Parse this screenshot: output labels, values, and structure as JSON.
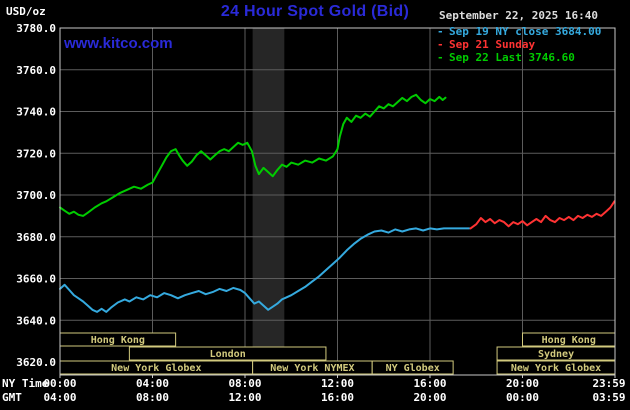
{
  "header": {
    "unit": "USD/oz",
    "title": "24 Hour Spot Gold (Bid)",
    "timestamp": "September 22, 2025 16:40"
  },
  "watermark": "www.kitco.com",
  "footer": {
    "ny_label": "NY Time",
    "gmt_label": "GMT"
  },
  "colors": {
    "background": "#000000",
    "title_blue": "#2a2ad8",
    "axis_text": "#ffffff",
    "timestamp_text": "#dddddd",
    "grid": "#5c5c5c",
    "frame": "#c8c8c8",
    "session": "#d2ca7e",
    "band": "#262626",
    "sep19_blue": "#35aadf",
    "sep21_red": "#ff3333",
    "sep22_green": "#00cc00"
  },
  "chart_data": {
    "type": "line",
    "title": "24 Hour Spot Gold (Bid)",
    "ylabel": "USD/oz",
    "ylim": [
      3620,
      3780
    ],
    "y_ticks": [
      3780,
      3760,
      3740,
      3720,
      3700,
      3680,
      3660,
      3640,
      3620
    ],
    "x_range_hours": [
      0,
      24
    ],
    "x_ticks": [
      {
        "hour": 0,
        "ny": "00:00",
        "gmt": "04:00"
      },
      {
        "hour": 4,
        "ny": "04:00",
        "gmt": "08:00"
      },
      {
        "hour": 8,
        "ny": "08:00",
        "gmt": "12:00"
      },
      {
        "hour": 12,
        "ny": "12:00",
        "gmt": "16:00"
      },
      {
        "hour": 16,
        "ny": "16:00",
        "gmt": "20:00"
      },
      {
        "hour": 20,
        "ny": "20:00",
        "gmt": "00:00"
      },
      {
        "hour": 24,
        "ny": "23:59",
        "gmt": "03:59"
      }
    ],
    "grid": true,
    "legend_position": "top-right",
    "shaded_band_hours": [
      8.33,
      9.7
    ],
    "legend": [
      {
        "marker": "-",
        "label": "Sep 19 NY close 3684.00",
        "color": "#35aadf"
      },
      {
        "marker": "-",
        "label": "Sep 21 Sunday",
        "color": "#ff3333"
      },
      {
        "marker": "-",
        "label": "Sep 22 Last 3746.60",
        "color": "#00cc00"
      }
    ],
    "series": [
      {
        "id": "sep19",
        "name": "Sep 19 NY close 3684.00",
        "color": "#35aadf",
        "points": [
          [
            0,
            3655
          ],
          [
            0.2,
            3657
          ],
          [
            0.4,
            3654.5
          ],
          [
            0.6,
            3652
          ],
          [
            0.8,
            3650.5
          ],
          [
            1,
            3649
          ],
          [
            1.2,
            3647
          ],
          [
            1.4,
            3645
          ],
          [
            1.6,
            3644
          ],
          [
            1.8,
            3645.5
          ],
          [
            2,
            3644
          ],
          [
            2.2,
            3646
          ],
          [
            2.5,
            3648.5
          ],
          [
            2.8,
            3650
          ],
          [
            3,
            3649
          ],
          [
            3.3,
            3651
          ],
          [
            3.6,
            3650
          ],
          [
            3.9,
            3652
          ],
          [
            4.2,
            3651
          ],
          [
            4.5,
            3653
          ],
          [
            4.8,
            3652
          ],
          [
            5.1,
            3650.5
          ],
          [
            5.4,
            3652
          ],
          [
            5.7,
            3653
          ],
          [
            6,
            3654
          ],
          [
            6.3,
            3652.5
          ],
          [
            6.6,
            3653.5
          ],
          [
            6.9,
            3655
          ],
          [
            7.2,
            3654
          ],
          [
            7.5,
            3655.5
          ],
          [
            7.8,
            3654.5
          ],
          [
            8,
            3653
          ],
          [
            8.2,
            3650.5
          ],
          [
            8.4,
            3648
          ],
          [
            8.6,
            3649
          ],
          [
            8.8,
            3647
          ],
          [
            9,
            3645
          ],
          [
            9.2,
            3646.5
          ],
          [
            9.4,
            3648
          ],
          [
            9.6,
            3650
          ],
          [
            9.8,
            3651
          ],
          [
            10,
            3652
          ],
          [
            10.3,
            3654
          ],
          [
            10.6,
            3656
          ],
          [
            10.9,
            3658.5
          ],
          [
            11.2,
            3661
          ],
          [
            11.5,
            3664
          ],
          [
            11.8,
            3667
          ],
          [
            12.1,
            3670
          ],
          [
            12.4,
            3673.5
          ],
          [
            12.7,
            3676.5
          ],
          [
            13,
            3679
          ],
          [
            13.3,
            3681
          ],
          [
            13.6,
            3682.5
          ],
          [
            13.9,
            3683
          ],
          [
            14.2,
            3682
          ],
          [
            14.5,
            3683.5
          ],
          [
            14.8,
            3682.5
          ],
          [
            15.1,
            3683.5
          ],
          [
            15.4,
            3684
          ],
          [
            15.7,
            3683
          ],
          [
            16,
            3684
          ],
          [
            16.3,
            3683.5
          ],
          [
            16.6,
            3684
          ],
          [
            17,
            3684
          ],
          [
            17.4,
            3684
          ],
          [
            17.7,
            3684
          ]
        ]
      },
      {
        "id": "sep21",
        "name": "Sep 21 Sunday",
        "color": "#ff3333",
        "points": [
          [
            17.75,
            3684
          ],
          [
            18,
            3686
          ],
          [
            18.2,
            3689
          ],
          [
            18.4,
            3687
          ],
          [
            18.6,
            3688.5
          ],
          [
            18.8,
            3686.5
          ],
          [
            19,
            3688
          ],
          [
            19.2,
            3687
          ],
          [
            19.4,
            3685
          ],
          [
            19.6,
            3687
          ],
          [
            19.8,
            3686
          ],
          [
            20,
            3687.5
          ],
          [
            20.2,
            3685.5
          ],
          [
            20.4,
            3687
          ],
          [
            20.6,
            3688.5
          ],
          [
            20.8,
            3687
          ],
          [
            21,
            3690
          ],
          [
            21.2,
            3688
          ],
          [
            21.4,
            3687
          ],
          [
            21.6,
            3689
          ],
          [
            21.8,
            3688
          ],
          [
            22,
            3689.5
          ],
          [
            22.2,
            3688
          ],
          [
            22.4,
            3690
          ],
          [
            22.6,
            3689
          ],
          [
            22.8,
            3690.5
          ],
          [
            23,
            3689.5
          ],
          [
            23.2,
            3691
          ],
          [
            23.4,
            3690
          ],
          [
            23.6,
            3692
          ],
          [
            23.8,
            3694
          ],
          [
            23.98,
            3697
          ]
        ]
      },
      {
        "id": "sep22",
        "name": "Sep 22 Last 3746.60",
        "color": "#00cc00",
        "points": [
          [
            0,
            3694
          ],
          [
            0.2,
            3692.5
          ],
          [
            0.4,
            3691
          ],
          [
            0.6,
            3692
          ],
          [
            0.8,
            3690.5
          ],
          [
            1,
            3690
          ],
          [
            1.2,
            3691.5
          ],
          [
            1.5,
            3694
          ],
          [
            1.8,
            3696
          ],
          [
            2,
            3697
          ],
          [
            2.3,
            3699
          ],
          [
            2.6,
            3701
          ],
          [
            2.9,
            3702.5
          ],
          [
            3.2,
            3704
          ],
          [
            3.5,
            3703
          ],
          [
            3.8,
            3705
          ],
          [
            4,
            3706
          ],
          [
            4.2,
            3710
          ],
          [
            4.4,
            3714
          ],
          [
            4.6,
            3718
          ],
          [
            4.8,
            3721
          ],
          [
            5,
            3722
          ],
          [
            5.15,
            3719
          ],
          [
            5.3,
            3716.5
          ],
          [
            5.5,
            3714
          ],
          [
            5.7,
            3716
          ],
          [
            5.9,
            3719
          ],
          [
            6.1,
            3721
          ],
          [
            6.3,
            3719
          ],
          [
            6.5,
            3717
          ],
          [
            6.7,
            3719
          ],
          [
            6.9,
            3721
          ],
          [
            7.1,
            3722
          ],
          [
            7.3,
            3721
          ],
          [
            7.5,
            3723
          ],
          [
            7.7,
            3725
          ],
          [
            7.9,
            3724
          ],
          [
            8.1,
            3725
          ],
          [
            8.3,
            3721
          ],
          [
            8.45,
            3714
          ],
          [
            8.6,
            3710
          ],
          [
            8.8,
            3713
          ],
          [
            9,
            3711
          ],
          [
            9.2,
            3709
          ],
          [
            9.4,
            3712
          ],
          [
            9.6,
            3714.5
          ],
          [
            9.8,
            3713.5
          ],
          [
            10,
            3715.5
          ],
          [
            10.3,
            3714.5
          ],
          [
            10.6,
            3716.5
          ],
          [
            10.9,
            3715.5
          ],
          [
            11.2,
            3717.5
          ],
          [
            11.5,
            3716.5
          ],
          [
            11.8,
            3718.5
          ],
          [
            12,
            3722
          ],
          [
            12.1,
            3728
          ],
          [
            12.25,
            3734
          ],
          [
            12.4,
            3737
          ],
          [
            12.6,
            3735
          ],
          [
            12.8,
            3738
          ],
          [
            13,
            3737
          ],
          [
            13.2,
            3739
          ],
          [
            13.4,
            3737.5
          ],
          [
            13.6,
            3740
          ],
          [
            13.8,
            3742.5
          ],
          [
            14,
            3741.5
          ],
          [
            14.2,
            3743.5
          ],
          [
            14.4,
            3742.5
          ],
          [
            14.6,
            3744.5
          ],
          [
            14.8,
            3746.5
          ],
          [
            15,
            3745
          ],
          [
            15.2,
            3747
          ],
          [
            15.4,
            3748
          ],
          [
            15.6,
            3745.5
          ],
          [
            15.8,
            3744
          ],
          [
            16,
            3746
          ],
          [
            16.2,
            3745
          ],
          [
            16.4,
            3747
          ],
          [
            16.55,
            3745.5
          ],
          [
            16.67,
            3746.6
          ]
        ]
      }
    ],
    "sessions": [
      {
        "row": 0,
        "label": "Hong Kong",
        "start": 0,
        "end": 5
      },
      {
        "row": 0,
        "label": "Hong Kong",
        "start": 20,
        "end": 24
      },
      {
        "row": 1,
        "label": "London",
        "start": 3,
        "end": 11.5
      },
      {
        "row": 1,
        "label": "Sydney",
        "start": 18.9,
        "end": 24
      },
      {
        "row": 2,
        "label": "New York Globex",
        "start": 0,
        "end": 8.33
      },
      {
        "row": 2,
        "label": "New York NYMEX",
        "start": 8.33,
        "end": 13.5
      },
      {
        "row": 2,
        "label": "NY Globex",
        "start": 13.5,
        "end": 17
      },
      {
        "row": 2,
        "label": "New York Globex",
        "start": 18.9,
        "end": 24
      }
    ]
  }
}
